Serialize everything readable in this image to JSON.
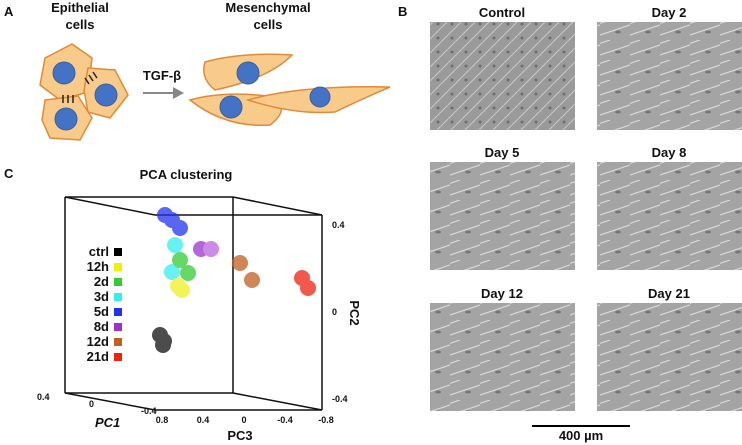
{
  "panel_a": {
    "letter": "A",
    "left_title": [
      "Epithelial",
      "cells"
    ],
    "right_title": [
      "Mesenchymal",
      "cells"
    ],
    "treatment": "TGF-β"
  },
  "panel_b": {
    "letter": "B",
    "images": [
      "Control",
      "Day 2",
      "Day 5",
      "Day 8",
      "Day 12",
      "Day 21"
    ],
    "scale_bar": "400 µm"
  },
  "panel_c": {
    "letter": "C",
    "title": "PCA clustering",
    "legend": [
      "ctrl",
      "12h",
      "2d",
      "3d",
      "5d",
      "8d",
      "12d",
      "21d"
    ],
    "pc2_ticks": [
      "0.4",
      "0",
      "-0.4"
    ],
    "pc3_ticks": [
      "0.8",
      "0.4",
      "0",
      "-0.4",
      "-0.8"
    ],
    "pc1_ticks": [
      "0.4",
      "0",
      "-0.4"
    ],
    "pc1_label": "PC1",
    "pc2_label": "PC2",
    "pc3_label": "PC3"
  }
}
